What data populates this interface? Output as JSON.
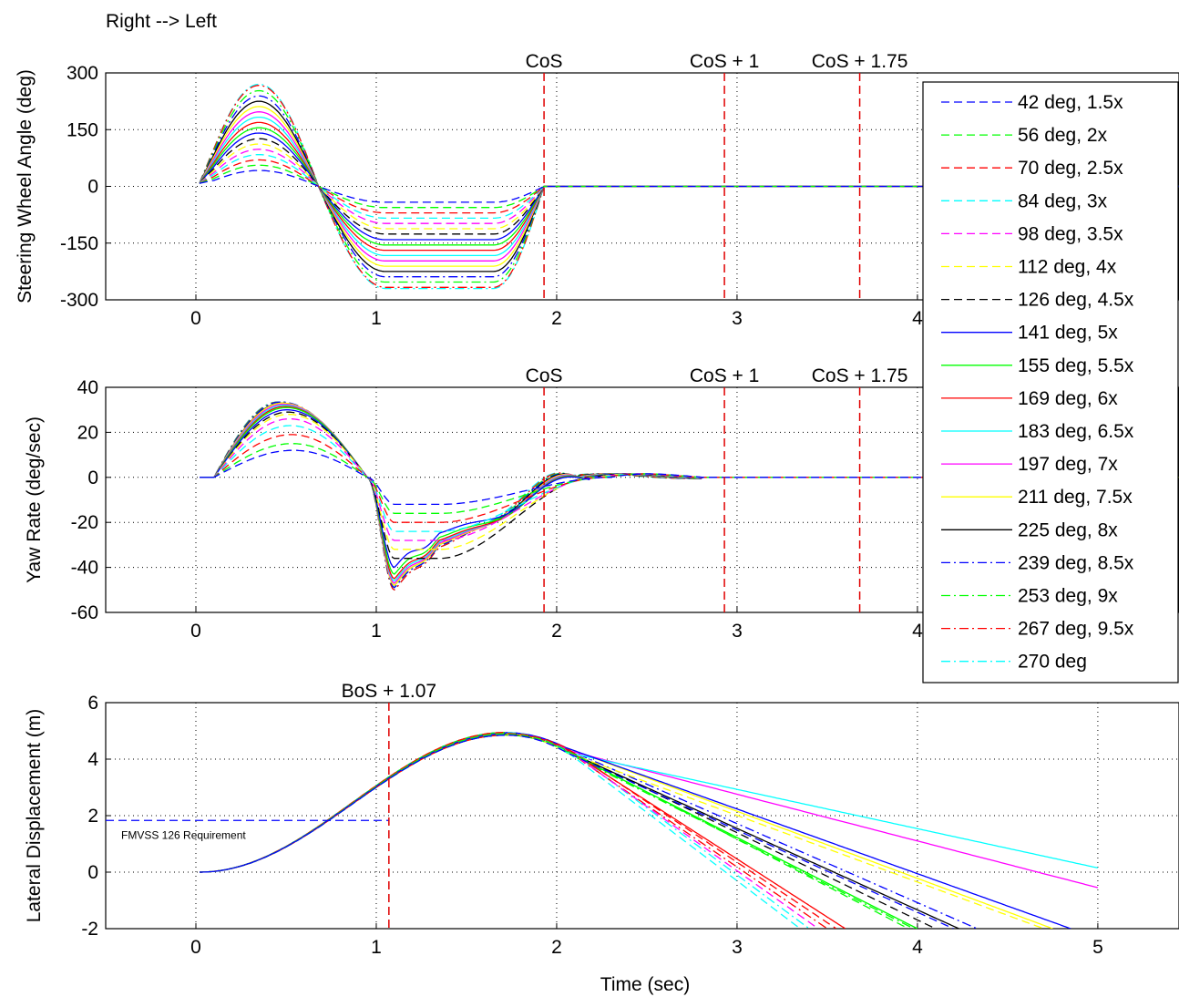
{
  "figure": {
    "title": "Right --> Left",
    "xlabel": "Time (sec)",
    "vline_color": "#e00000"
  },
  "legend": {
    "entries": [
      {
        "label": "42 deg, 1.5x",
        "color": "#0000ff",
        "dash": "dash"
      },
      {
        "label": "56 deg, 2x",
        "color": "#00ff00",
        "dash": "dash"
      },
      {
        "label": "70 deg, 2.5x",
        "color": "#ff0000",
        "dash": "dash"
      },
      {
        "label": "84 deg, 3x",
        "color": "#00ffff",
        "dash": "dash"
      },
      {
        "label": "98 deg, 3.5x",
        "color": "#ff00ff",
        "dash": "dash"
      },
      {
        "label": "112 deg, 4x",
        "color": "#ffff00",
        "dash": "dash"
      },
      {
        "label": "126 deg, 4.5x",
        "color": "#000000",
        "dash": "dash"
      },
      {
        "label": "141 deg, 5x",
        "color": "#0000ff",
        "dash": "solid"
      },
      {
        "label": "155 deg, 5.5x",
        "color": "#00ff00",
        "dash": "solid"
      },
      {
        "label": "169 deg, 6x",
        "color": "#ff0000",
        "dash": "solid"
      },
      {
        "label": "183 deg, 6.5x",
        "color": "#00ffff",
        "dash": "solid"
      },
      {
        "label": "197 deg, 7x",
        "color": "#ff00ff",
        "dash": "solid"
      },
      {
        "label": "211 deg, 7.5x",
        "color": "#ffff00",
        "dash": "solid"
      },
      {
        "label": "225 deg, 8x",
        "color": "#000000",
        "dash": "solid"
      },
      {
        "label": "239 deg, 8.5x",
        "color": "#0000ff",
        "dash": "dashdot"
      },
      {
        "label": "253 deg, 9x",
        "color": "#00ff00",
        "dash": "dashdot"
      },
      {
        "label": "267 deg, 9.5x",
        "color": "#ff0000",
        "dash": "dashdot"
      },
      {
        "label": "270 deg",
        "color": "#00ffff",
        "dash": "dashdot"
      }
    ]
  },
  "chart_data": [
    {
      "type": "line",
      "ylabel": "Steering Wheel Angle (deg)",
      "xlim": [
        -0.5,
        5.45
      ],
      "ylim": [
        -300,
        300
      ],
      "xticks": [
        0,
        1,
        2,
        3,
        4
      ],
      "yticks": [
        300,
        150,
        0,
        -150,
        -300
      ],
      "grid": true,
      "annotations": [
        {
          "x": 1.93,
          "text": "CoS"
        },
        {
          "x": 2.93,
          "text": "CoS + 1"
        },
        {
          "x": 3.68,
          "text": "CoS + 1.75"
        }
      ],
      "series_model": "sine-with-dwell: peak = angle at ~0.35 s, negative dwell = -angle from ~1.05 s to ~1.65 s, returns to 0 at 1.93 s",
      "peak_values": [
        42,
        56,
        70,
        84,
        98,
        112,
        126,
        141,
        155,
        169,
        183,
        197,
        211,
        225,
        239,
        253,
        267,
        270
      ]
    },
    {
      "type": "line",
      "ylabel": "Yaw Rate (deg/sec)",
      "xlim": [
        -0.5,
        5.45
      ],
      "ylim": [
        -60,
        40
      ],
      "xticks": [
        0,
        1,
        2,
        3,
        4
      ],
      "yticks": [
        40,
        20,
        0,
        -20,
        -40,
        -60
      ],
      "grid": true,
      "annotations": [
        {
          "x": 1.93,
          "text": "CoS"
        },
        {
          "x": 2.93,
          "text": "CoS + 1"
        },
        {
          "x": 3.68,
          "text": "CoS + 1.75"
        }
      ],
      "first_peak_values": [
        12,
        15,
        19,
        23,
        26,
        28,
        29,
        30,
        31,
        31.5,
        32,
        32.5,
        33,
        33,
        33.5,
        33.5,
        33.5,
        33.5
      ],
      "min_values": [
        -12,
        -16,
        -20,
        -24,
        -28,
        -32,
        -36,
        -40,
        -43,
        -45,
        -46,
        -47,
        -48,
        -48,
        -49,
        -49,
        -50,
        -50
      ],
      "end_value": 0
    },
    {
      "type": "line",
      "ylabel": "Lateral Displacement (m)",
      "xlabel": "Time (sec)",
      "xlim": [
        -0.5,
        5.45
      ],
      "ylim": [
        -2,
        6
      ],
      "xticks": [
        0,
        1,
        2,
        3,
        4,
        5
      ],
      "yticks": [
        6,
        4,
        2,
        0,
        -2
      ],
      "grid": true,
      "annotations": [
        {
          "x": 1.07,
          "text": "BoS + 1.07"
        }
      ],
      "requirement": {
        "label": "FMVSS 126 Requirement",
        "y": 1.83,
        "x_from": -0.5,
        "x_to": 1.07
      },
      "peak": {
        "x": 1.72,
        "y": 4.85
      },
      "value_at_bos": 3.2,
      "end_points": [
        {
          "series": "42 deg, 1.5x",
          "x": 4.2,
          "y": -2
        },
        {
          "series": "56 deg, 2x",
          "x": 3.95,
          "y": -2
        },
        {
          "series": "70 deg, 2.5x",
          "x": 3.55,
          "y": -2
        },
        {
          "series": "84 deg, 3x",
          "x": 3.35,
          "y": -2
        },
        {
          "series": "98 deg, 3.5x",
          "x": 3.45,
          "y": -2
        },
        {
          "series": "112 deg, 4x",
          "x": 4.7,
          "y": -2
        },
        {
          "series": "126 deg, 4.5x",
          "x": 4.1,
          "y": -2
        },
        {
          "series": "141 deg, 5x",
          "x": 4.85,
          "y": -2
        },
        {
          "series": "155 deg, 5.5x",
          "x": 4.0,
          "y": -2
        },
        {
          "series": "169 deg, 6x",
          "x": 3.6,
          "y": -2
        },
        {
          "series": "183 deg, 6.5x",
          "x": 5.0,
          "y": 0.15
        },
        {
          "series": "197 deg, 7x",
          "x": 5.0,
          "y": -0.55
        },
        {
          "series": "211 deg, 7.5x",
          "x": 4.75,
          "y": -2
        },
        {
          "series": "225 deg, 8x",
          "x": 4.23,
          "y": -2
        },
        {
          "series": "239 deg, 8.5x",
          "x": 4.33,
          "y": -2
        },
        {
          "series": "253 deg, 9x",
          "x": 3.98,
          "y": -2
        },
        {
          "series": "267 deg, 9.5x",
          "x": 3.5,
          "y": -2
        },
        {
          "series": "270 deg",
          "x": 3.4,
          "y": -2
        }
      ]
    }
  ]
}
